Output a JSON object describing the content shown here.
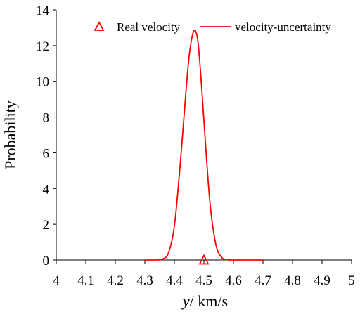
{
  "chart_data": {
    "type": "line",
    "xlabel": "y/ km/s",
    "xlabel_italic_part": "y",
    "xlabel_rest": "/ km/s",
    "ylabel": "Probability",
    "xlim": [
      4,
      5
    ],
    "ylim": [
      0,
      14
    ],
    "x_ticks": [
      "4",
      "4.1",
      "4.2",
      "4.3",
      "4.4",
      "4.5",
      "4.6",
      "4.7",
      "4.8",
      "4.9",
      "5"
    ],
    "y_ticks": [
      "0",
      "2",
      "4",
      "6",
      "8",
      "10",
      "12",
      "14"
    ],
    "grid": false,
    "legend_position": "top",
    "series": [
      {
        "name": "velocity-uncertainty",
        "type": "line",
        "color": "#ff0000",
        "x": [
          4.3,
          4.34,
          4.36,
          4.38,
          4.4,
          4.42,
          4.44,
          4.45,
          4.46,
          4.47,
          4.48,
          4.49,
          4.5,
          4.52,
          4.54,
          4.56,
          4.58,
          4.6,
          4.7
        ],
        "y": [
          0,
          0.0,
          0.05,
          0.4,
          1.9,
          5.4,
          9.6,
          11.4,
          12.5,
          12.85,
          12.2,
          10.2,
          7.8,
          3.3,
          0.9,
          0.15,
          0.01,
          0,
          0
        ]
      },
      {
        "name": "Real velocity",
        "type": "scatter",
        "marker": "triangle-open",
        "color": "#ff0000",
        "x": [
          4.5
        ],
        "y": [
          0
        ]
      }
    ]
  }
}
